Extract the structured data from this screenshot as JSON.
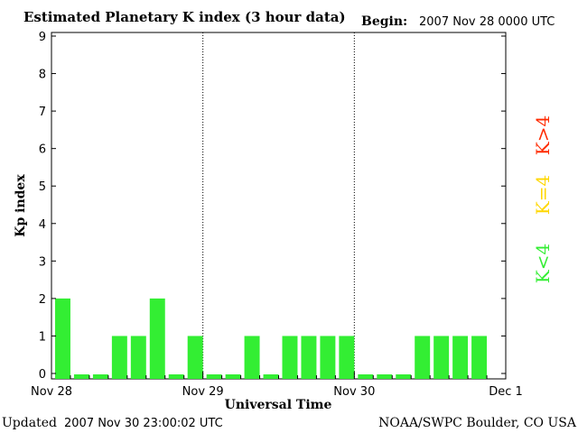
{
  "header": {
    "title": "Estimated Planetary K index (3 hour data)",
    "begin_label": "Begin:",
    "begin_value": "2007 Nov 28 0000 UTC"
  },
  "footer": {
    "updated_label": "Updated",
    "updated_value": "2007 Nov 30 23:00:02 UTC",
    "credit": "NOAA/SWPC Boulder, CO USA"
  },
  "legend": [
    {
      "label": "K>4",
      "color": "#ff2a00"
    },
    {
      "label": "K=4",
      "color": "#ffd700"
    },
    {
      "label": "K<4",
      "color": "#33ee33"
    }
  ],
  "chart_data": {
    "type": "bar",
    "title": "Estimated Planetary K index (3 hour data)",
    "xlabel": "Universal Time",
    "ylabel": "Kp index",
    "ylim": [
      0,
      9
    ],
    "yticks": [
      0,
      1,
      2,
      3,
      4,
      5,
      6,
      7,
      8,
      9
    ],
    "xticks": [
      "Nov 28",
      "Nov 29",
      "Nov 30",
      "Dec 1"
    ],
    "interval_hours": 3,
    "day_separators": "dotted",
    "bar_color": "#33ee33",
    "values": [
      2,
      0,
      0,
      1,
      1,
      2,
      0,
      1,
      0,
      0,
      1,
      0,
      1,
      1,
      1,
      1,
      0,
      0,
      0,
      1,
      1,
      1,
      1
    ]
  }
}
